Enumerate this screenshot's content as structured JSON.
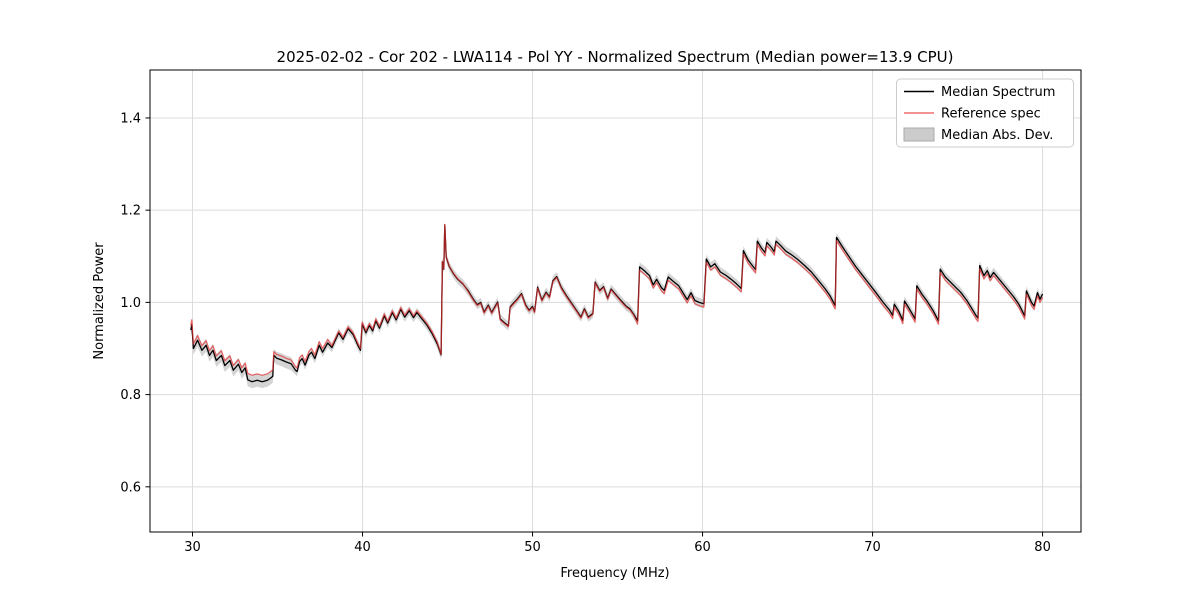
{
  "chart_data": {
    "type": "line",
    "title": "2025-02-02 - Cor 202 - LWA114 - Pol YY - Normalized Spectrum (Median power=13.9 CPU)",
    "xlabel": "Frequency (MHz)",
    "ylabel": "Normalized Power",
    "xlim": [
      27.5,
      82.26
    ],
    "ylim": [
      0.502,
      1.504
    ],
    "xticks": [
      30,
      40,
      50,
      60,
      70,
      80
    ],
    "yticks": [
      0.6,
      0.8,
      1.0,
      1.2,
      1.4
    ],
    "grid": true,
    "legend_position": "upper right",
    "colors": {
      "median": "#000000",
      "reference": "#e53030",
      "mad_band": "#b0b0b0",
      "grid": "#dcdcdc",
      "legend_border": "#cccccc"
    },
    "series": [
      {
        "name": "Median Spectrum",
        "color": "#000000",
        "points": [
          [
            29.9,
            0.94
          ],
          [
            29.96,
            0.952
          ],
          [
            30.05,
            0.9
          ],
          [
            30.3,
            0.918
          ],
          [
            30.55,
            0.896
          ],
          [
            30.8,
            0.907
          ],
          [
            31.0,
            0.885
          ],
          [
            31.2,
            0.896
          ],
          [
            31.4,
            0.874
          ],
          [
            31.7,
            0.885
          ],
          [
            31.9,
            0.863
          ],
          [
            32.2,
            0.874
          ],
          [
            32.4,
            0.853
          ],
          [
            32.7,
            0.866
          ],
          [
            32.9,
            0.848
          ],
          [
            33.1,
            0.858
          ],
          [
            33.25,
            0.832
          ],
          [
            33.5,
            0.828
          ],
          [
            33.8,
            0.831
          ],
          [
            34.1,
            0.828
          ],
          [
            34.4,
            0.831
          ],
          [
            34.6,
            0.836
          ],
          [
            34.72,
            0.84
          ],
          [
            34.78,
            0.885
          ],
          [
            34.95,
            0.879
          ],
          [
            35.2,
            0.876
          ],
          [
            35.5,
            0.871
          ],
          [
            35.8,
            0.867
          ],
          [
            36.05,
            0.853
          ],
          [
            36.15,
            0.85
          ],
          [
            36.3,
            0.872
          ],
          [
            36.45,
            0.878
          ],
          [
            36.62,
            0.864
          ],
          [
            36.85,
            0.886
          ],
          [
            37.0,
            0.892
          ],
          [
            37.2,
            0.878
          ],
          [
            37.45,
            0.907
          ],
          [
            37.65,
            0.892
          ],
          [
            37.95,
            0.912
          ],
          [
            38.2,
            0.902
          ],
          [
            38.6,
            0.934
          ],
          [
            38.85,
            0.92
          ],
          [
            39.15,
            0.943
          ],
          [
            39.45,
            0.93
          ],
          [
            39.75,
            0.905
          ],
          [
            39.88,
            0.896
          ],
          [
            39.98,
            0.953
          ],
          [
            40.2,
            0.934
          ],
          [
            40.4,
            0.95
          ],
          [
            40.6,
            0.938
          ],
          [
            40.78,
            0.96
          ],
          [
            41.0,
            0.944
          ],
          [
            41.28,
            0.971
          ],
          [
            41.48,
            0.955
          ],
          [
            41.75,
            0.978
          ],
          [
            41.98,
            0.962
          ],
          [
            42.25,
            0.985
          ],
          [
            42.48,
            0.968
          ],
          [
            42.75,
            0.982
          ],
          [
            43.0,
            0.967
          ],
          [
            43.2,
            0.978
          ],
          [
            43.5,
            0.964
          ],
          [
            43.8,
            0.95
          ],
          [
            44.1,
            0.932
          ],
          [
            44.4,
            0.91
          ],
          [
            44.62,
            0.886
          ],
          [
            44.7,
            1.088
          ],
          [
            44.78,
            1.072
          ],
          [
            44.84,
            1.168
          ],
          [
            44.92,
            1.098
          ],
          [
            45.1,
            1.078
          ],
          [
            45.35,
            1.062
          ],
          [
            45.6,
            1.05
          ],
          [
            45.9,
            1.04
          ],
          [
            46.2,
            1.026
          ],
          [
            46.5,
            1.008
          ],
          [
            46.75,
            0.995
          ],
          [
            46.95,
            1.0
          ],
          [
            47.15,
            0.979
          ],
          [
            47.4,
            0.994
          ],
          [
            47.6,
            0.978
          ],
          [
            47.78,
            0.99
          ],
          [
            47.95,
            1.001
          ],
          [
            48.1,
            0.964
          ],
          [
            48.35,
            0.956
          ],
          [
            48.58,
            0.949
          ],
          [
            48.68,
            0.99
          ],
          [
            48.9,
            0.999
          ],
          [
            49.1,
            1.007
          ],
          [
            49.35,
            1.019
          ],
          [
            49.6,
            0.994
          ],
          [
            49.8,
            0.983
          ],
          [
            50.0,
            0.991
          ],
          [
            50.12,
            0.98
          ],
          [
            50.3,
            1.033
          ],
          [
            50.55,
            1.005
          ],
          [
            50.8,
            1.022
          ],
          [
            51.0,
            1.012
          ],
          [
            51.2,
            1.047
          ],
          [
            51.42,
            1.056
          ],
          [
            51.7,
            1.032
          ],
          [
            52.0,
            1.014
          ],
          [
            52.3,
            0.998
          ],
          [
            52.6,
            0.982
          ],
          [
            52.85,
            0.968
          ],
          [
            53.05,
            0.986
          ],
          [
            53.28,
            0.968
          ],
          [
            53.55,
            0.976
          ],
          [
            53.68,
            1.044
          ],
          [
            53.95,
            1.026
          ],
          [
            54.18,
            1.034
          ],
          [
            54.42,
            1.009
          ],
          [
            54.62,
            1.029
          ],
          [
            54.9,
            1.017
          ],
          [
            55.2,
            1.004
          ],
          [
            55.5,
            0.992
          ],
          [
            55.72,
            0.986
          ],
          [
            55.95,
            0.974
          ],
          [
            56.18,
            0.96
          ],
          [
            56.3,
            1.077
          ],
          [
            56.6,
            1.068
          ],
          [
            56.88,
            1.058
          ],
          [
            57.1,
            1.038
          ],
          [
            57.3,
            1.05
          ],
          [
            57.58,
            1.032
          ],
          [
            57.75,
            1.026
          ],
          [
            57.98,
            1.055
          ],
          [
            58.3,
            1.045
          ],
          [
            58.6,
            1.036
          ],
          [
            58.88,
            1.019
          ],
          [
            59.1,
            1.006
          ],
          [
            59.32,
            1.021
          ],
          [
            59.55,
            1.004
          ],
          [
            59.8,
            1.0
          ],
          [
            60.08,
            0.997
          ],
          [
            60.22,
            1.094
          ],
          [
            60.48,
            1.077
          ],
          [
            60.72,
            1.084
          ],
          [
            61.05,
            1.066
          ],
          [
            61.4,
            1.058
          ],
          [
            61.68,
            1.05
          ],
          [
            62.0,
            1.04
          ],
          [
            62.28,
            1.03
          ],
          [
            62.4,
            1.112
          ],
          [
            62.68,
            1.092
          ],
          [
            62.95,
            1.079
          ],
          [
            63.12,
            1.071
          ],
          [
            63.22,
            1.133
          ],
          [
            63.48,
            1.117
          ],
          [
            63.68,
            1.108
          ],
          [
            63.78,
            1.13
          ],
          [
            64.05,
            1.119
          ],
          [
            64.22,
            1.11
          ],
          [
            64.32,
            1.133
          ],
          [
            64.6,
            1.123
          ],
          [
            64.9,
            1.111
          ],
          [
            65.2,
            1.104
          ],
          [
            65.6,
            1.093
          ],
          [
            66.0,
            1.08
          ],
          [
            66.4,
            1.066
          ],
          [
            66.8,
            1.048
          ],
          [
            67.2,
            1.03
          ],
          [
            67.5,
            1.014
          ],
          [
            67.8,
            0.993
          ],
          [
            67.88,
            1.141
          ],
          [
            68.2,
            1.122
          ],
          [
            68.6,
            1.1
          ],
          [
            69.0,
            1.078
          ],
          [
            69.4,
            1.059
          ],
          [
            69.8,
            1.04
          ],
          [
            70.2,
            1.021
          ],
          [
            70.6,
            1.001
          ],
          [
            71.0,
            0.983
          ],
          [
            71.18,
            0.972
          ],
          [
            71.28,
            0.996
          ],
          [
            71.55,
            0.98
          ],
          [
            71.78,
            0.961
          ],
          [
            71.88,
            1.003
          ],
          [
            72.15,
            0.987
          ],
          [
            72.4,
            0.971
          ],
          [
            72.5,
            0.964
          ],
          [
            72.6,
            1.036
          ],
          [
            72.9,
            1.018
          ],
          [
            73.2,
            1.003
          ],
          [
            73.55,
            0.983
          ],
          [
            73.88,
            0.96
          ],
          [
            73.98,
            1.072
          ],
          [
            74.28,
            1.055
          ],
          [
            74.58,
            1.044
          ],
          [
            74.88,
            1.033
          ],
          [
            75.18,
            1.022
          ],
          [
            75.55,
            1.004
          ],
          [
            75.85,
            0.986
          ],
          [
            76.08,
            0.972
          ],
          [
            76.2,
            0.966
          ],
          [
            76.3,
            1.08
          ],
          [
            76.55,
            1.058
          ],
          [
            76.75,
            1.069
          ],
          [
            76.92,
            1.054
          ],
          [
            77.12,
            1.065
          ],
          [
            77.5,
            1.048
          ],
          [
            77.9,
            1.03
          ],
          [
            78.3,
            1.012
          ],
          [
            78.6,
            0.996
          ],
          [
            78.95,
            0.971
          ],
          [
            79.05,
            1.025
          ],
          [
            79.35,
            1.0
          ],
          [
            79.5,
            0.992
          ],
          [
            79.7,
            1.021
          ],
          [
            79.85,
            1.007
          ],
          [
            80.0,
            1.018
          ]
        ]
      },
      {
        "name": "Reference spec",
        "color": "#e53030",
        "opacity": 0.7,
        "derived_from": "median_plus_offset",
        "offsets": [
          {
            "until": 33.2,
            "offset": 0.01
          },
          {
            "until": 34.76,
            "offset": 0.014
          },
          {
            "until": 38.0,
            "offset": 0.008
          },
          {
            "until": 44.5,
            "offset": 0.004
          },
          {
            "until": 46.0,
            "offset": 0.001
          },
          {
            "until": 56.0,
            "offset": -0.002
          },
          {
            "until": 83.0,
            "offset": -0.007
          }
        ]
      },
      {
        "name": "Median Abs. Dev.",
        "band_around": "Median Spectrum",
        "color": "#b0b0b0",
        "opacity": 0.55,
        "halfwidth_segments": [
          {
            "until": 36.0,
            "hw": 0.014
          },
          {
            "until": 83.0,
            "hw": 0.01
          }
        ]
      }
    ]
  }
}
